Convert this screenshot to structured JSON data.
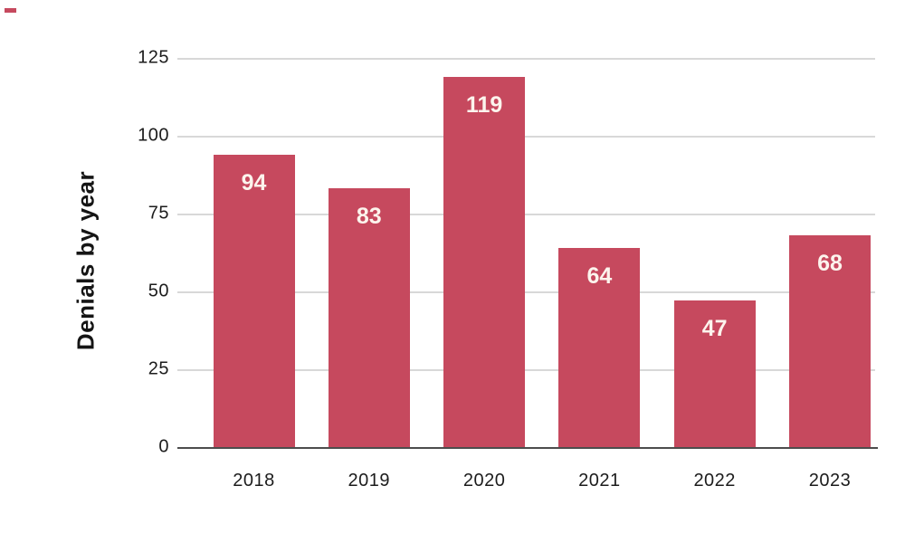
{
  "corner_mark": {
    "color": "#c6495e"
  },
  "chart_data": {
    "type": "bar",
    "title": "",
    "xlabel": "",
    "ylabel": "Denials by year",
    "categories": [
      "2018",
      "2019",
      "2020",
      "2021",
      "2022",
      "2023"
    ],
    "values": [
      94,
      83,
      119,
      64,
      47,
      68
    ],
    "value_labels": [
      "94",
      "83",
      "119",
      "64",
      "47",
      "68"
    ],
    "yticks": [
      0,
      25,
      50,
      75,
      100,
      125
    ],
    "ylim": [
      0,
      125
    ],
    "grid": "horizontal",
    "legend": "none",
    "colors": {
      "bar": "#c6495e",
      "bar_value_label": "#fcf4ed",
      "gridline": "#d8d8d8",
      "axis_line": "#4d4d4d",
      "tick_label": "#1c1c1c",
      "y_title": "#151515"
    }
  }
}
